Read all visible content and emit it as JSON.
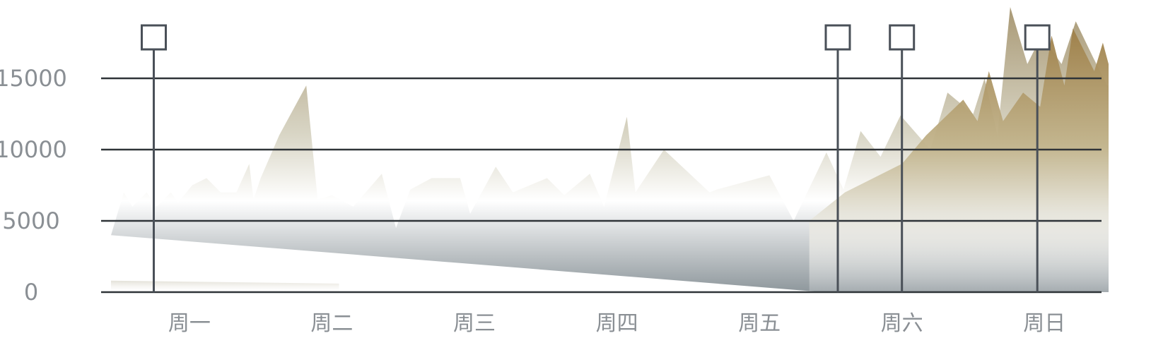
{
  "chart_data": {
    "type": "area",
    "categories": [
      "周一",
      "周二",
      "周三",
      "周四",
      "周五",
      "周六",
      "周日"
    ],
    "y_ticks": [
      0,
      5000,
      10000,
      15000
    ],
    "y_tick_labels": [
      "0",
      "5000",
      "10000",
      "15000"
    ],
    "ylim": [
      0,
      20000
    ],
    "xlim": [
      0,
      7
    ],
    "grid": true,
    "markers_x": [
      0.3,
      5.1,
      5.55,
      6.5
    ],
    "series": [
      {
        "color": "#c9c4b0",
        "x": [
          0.0,
          0.09,
          0.15,
          0.25,
          0.32,
          0.42,
          0.47,
          0.53,
          0.57,
          0.67,
          0.77,
          0.88,
          0.97,
          1.0,
          1.05,
          1.18,
          1.37,
          1.45,
          1.55,
          1.7,
          1.9,
          2.0,
          2.1,
          2.25,
          2.45,
          2.52,
          2.7,
          2.82,
          3.06,
          3.18,
          3.36,
          3.46,
          3.62,
          3.68,
          3.88,
          4.2,
          4.25,
          4.62,
          4.79,
          5.02,
          5.14,
          5.26,
          5.4,
          5.54,
          5.75,
          5.87,
          6.05,
          6.13,
          6.22,
          6.31,
          6.43,
          6.53,
          6.67,
          6.77,
          6.89,
          6.99,
          7.0
        ],
        "values": [
          4000,
          7000,
          6000,
          7000,
          6000,
          7000,
          6300,
          7000,
          7500,
          8000,
          7000,
          7000,
          9000,
          6500,
          8000,
          11000,
          14500,
          6500,
          6800,
          6000,
          8300,
          4500,
          7200,
          8000,
          8000,
          5500,
          8800,
          7000,
          8000,
          6800,
          8300,
          6000,
          12300,
          7000,
          10000,
          7000,
          7200,
          8200,
          5000,
          9800,
          7200,
          11300,
          9500,
          12400,
          10000,
          14000,
          12500,
          15000,
          11000,
          20000,
          16000,
          18000,
          16000,
          19000,
          16500,
          14500,
          14500
        ]
      },
      {
        "color": "#a88a52",
        "x": [
          4.9,
          5.15,
          5.55,
          5.72,
          5.98,
          6.08,
          6.16,
          6.26,
          6.4,
          6.52,
          6.6,
          6.69,
          6.75,
          6.9,
          6.96,
          7.0
        ],
        "values": [
          5000,
          7000,
          9000,
          11000,
          13500,
          12000,
          15500,
          12000,
          14000,
          13000,
          18000,
          14500,
          18500,
          15500,
          17500,
          16000
        ]
      },
      {
        "color": "#e8e0d6",
        "x": [
          0.0,
          1.6
        ],
        "values": [
          800,
          600
        ]
      }
    ]
  }
}
